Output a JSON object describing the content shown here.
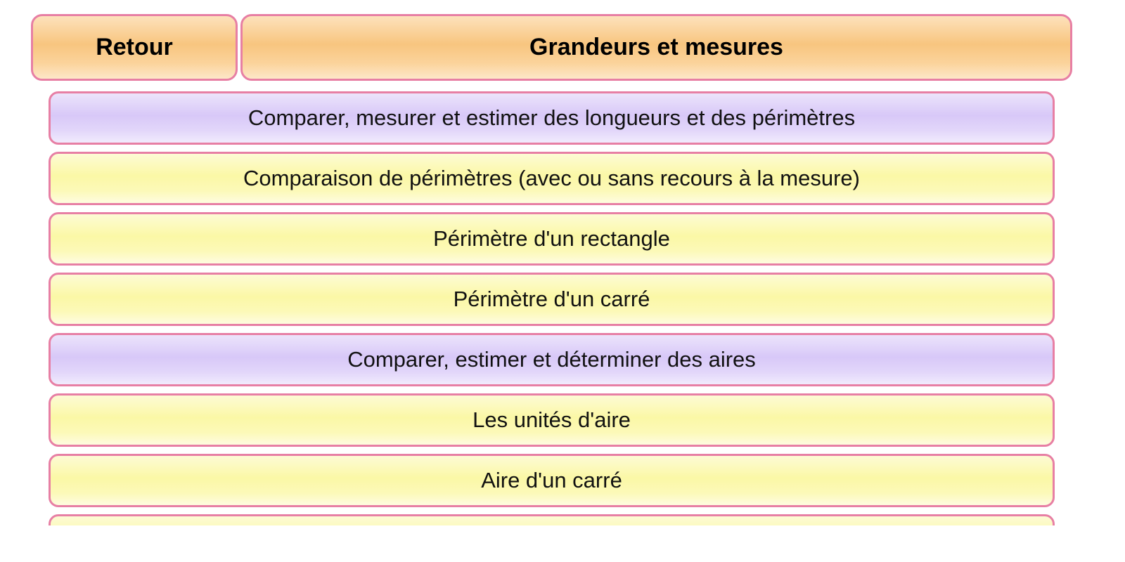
{
  "header": {
    "back_label": "Retour",
    "title": "Grandeurs et mesures"
  },
  "colors": {
    "border": "#e77fa4",
    "header_bg": "#f8c57f",
    "section_bg": "#d8c8f8",
    "item_bg": "#fbf8a6"
  },
  "items": [
    {
      "label": "Comparer, mesurer et estimer des longueurs et des périmètres",
      "type": "section"
    },
    {
      "label": "Comparaison de périmètres (avec ou sans recours à la mesure)",
      "type": "lesson"
    },
    {
      "label": "Périmètre d'un rectangle",
      "type": "lesson"
    },
    {
      "label": "Périmètre d'un carré",
      "type": "lesson"
    },
    {
      "label": "Comparer, estimer et déterminer des aires",
      "type": "section"
    },
    {
      "label": "Les unités d'aire",
      "type": "lesson"
    },
    {
      "label": "Aire d'un carré",
      "type": "lesson"
    },
    {
      "label": "",
      "type": "lesson"
    }
  ]
}
